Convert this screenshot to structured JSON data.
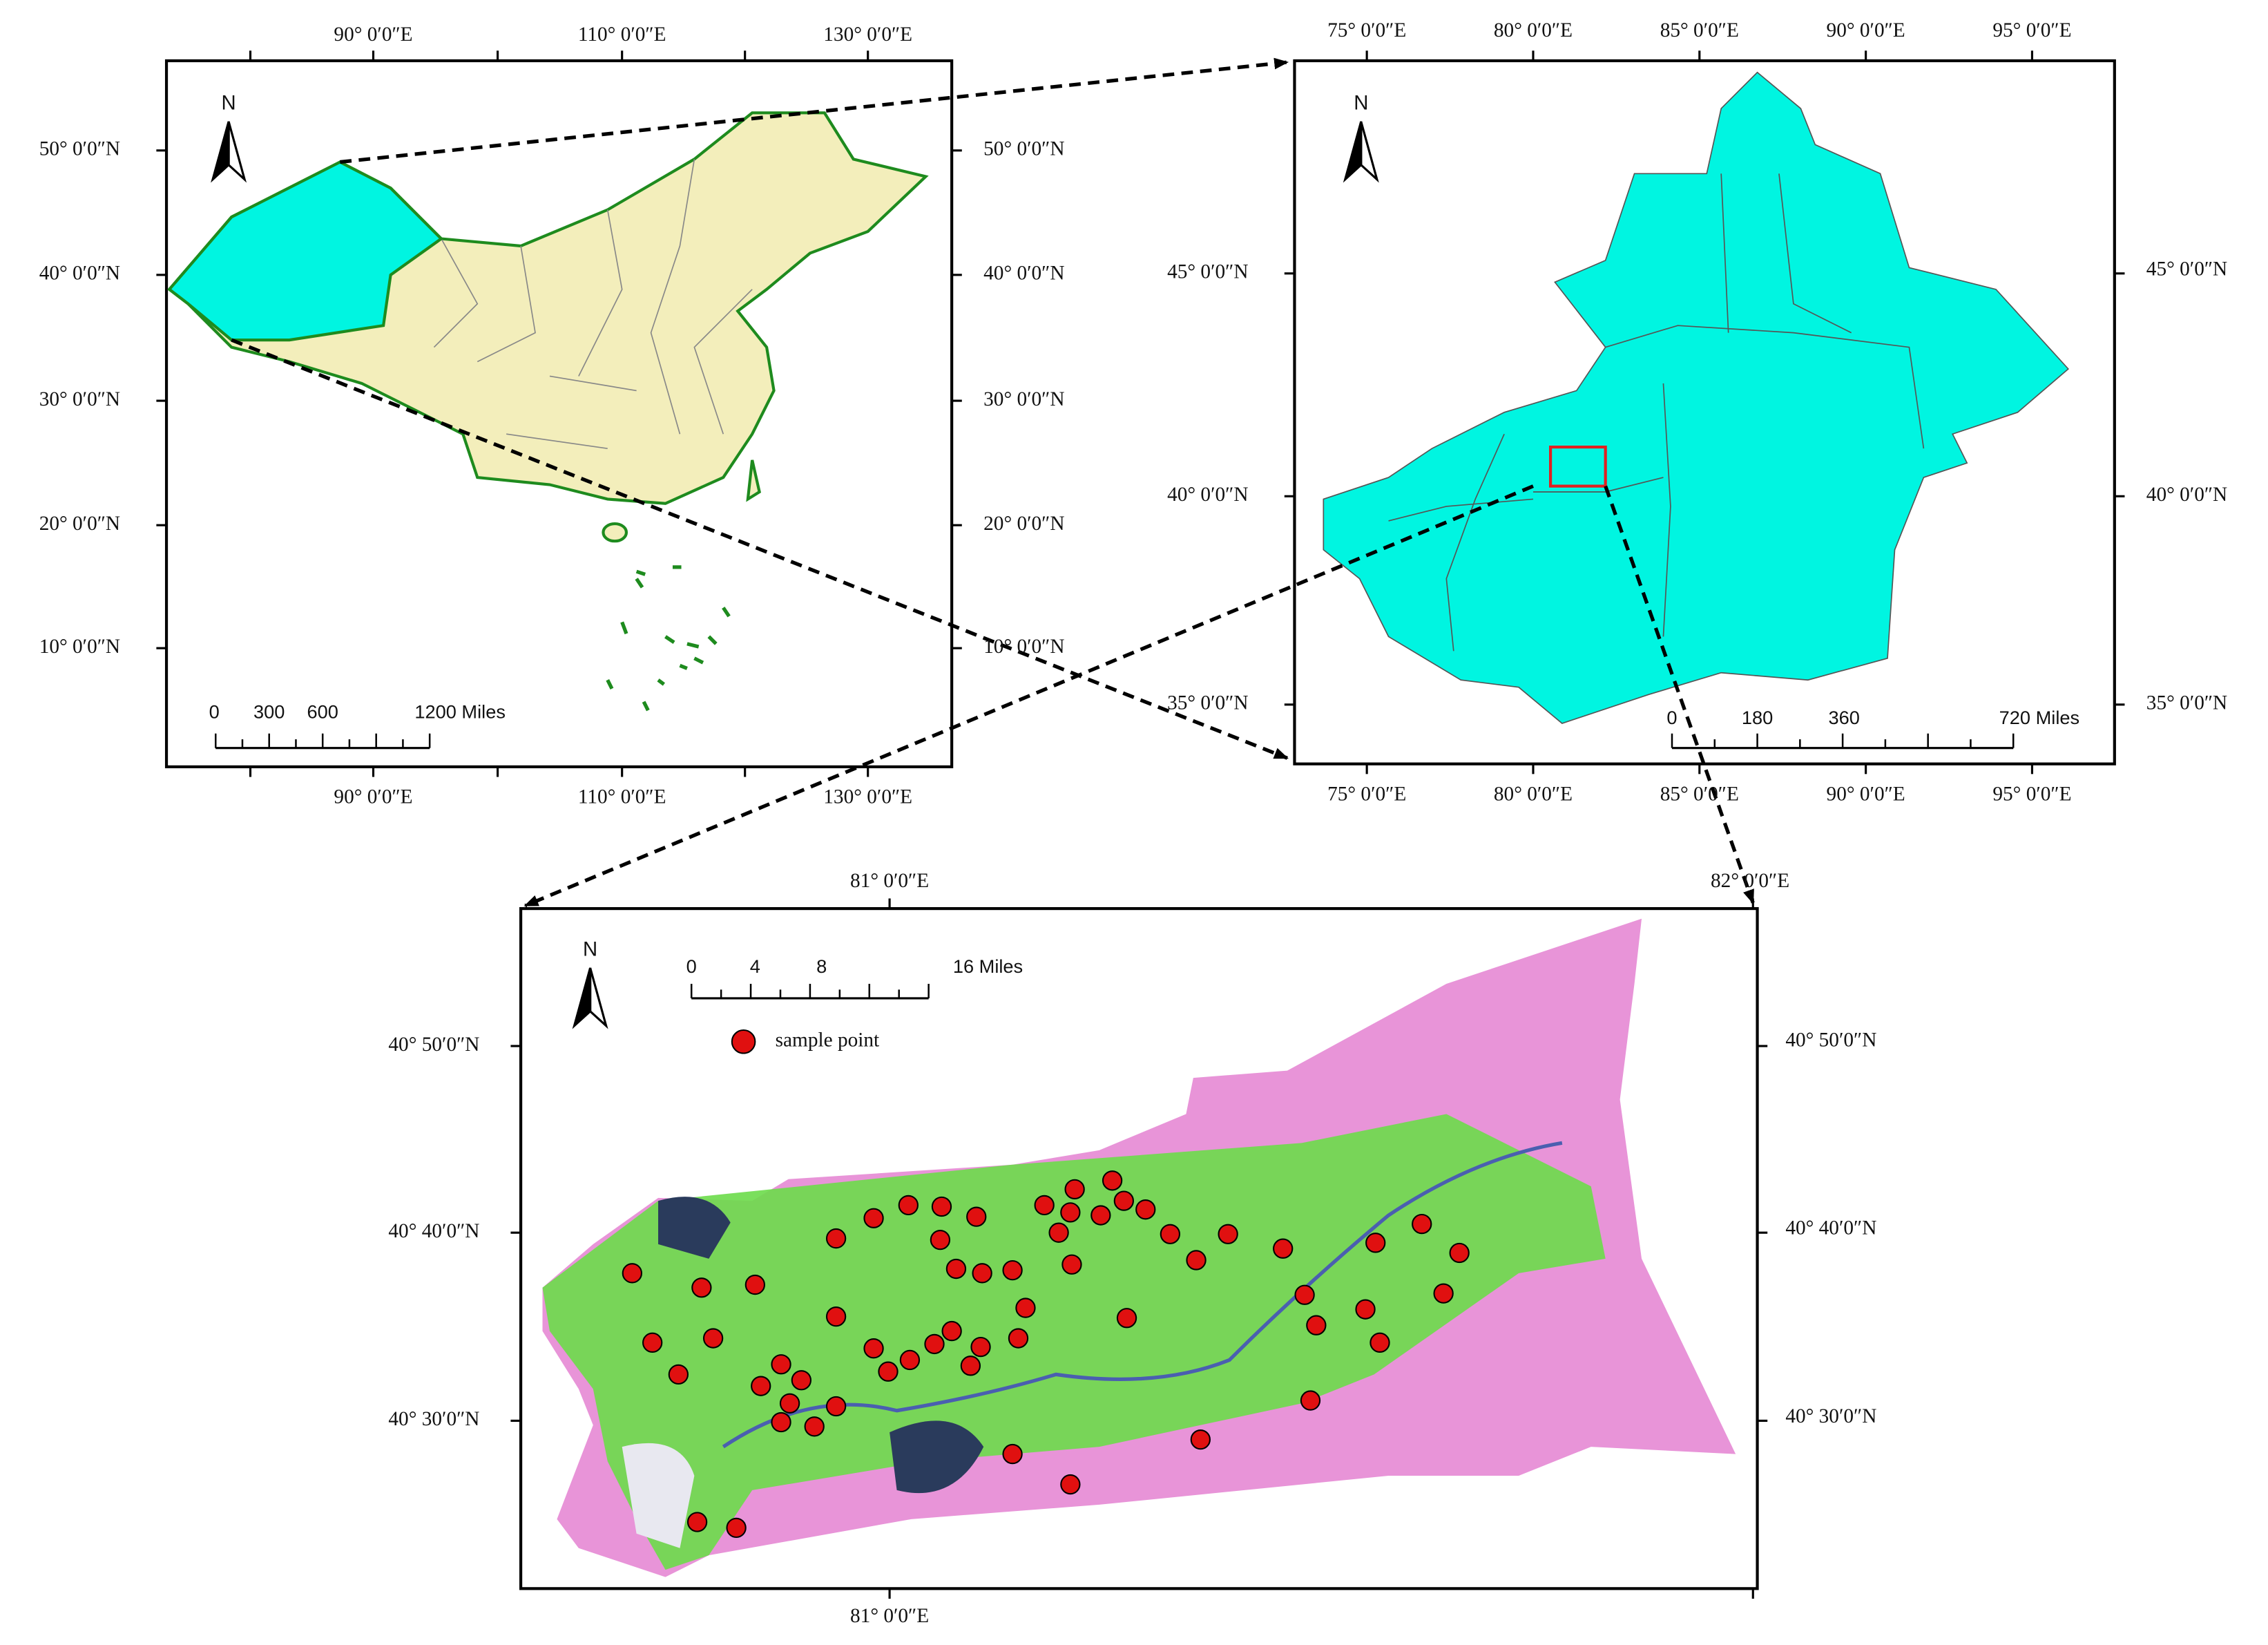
{
  "panels": [
    {
      "north": "N",
      "top_labels": [
        "90° 0′0″E",
        "110° 0′0″E",
        "130° 0′0″E"
      ],
      "bottom_labels": [
        "90° 0′0″E",
        "110° 0′0″E",
        "130° 0′0″E"
      ],
      "left_labels": [
        "50° 0′0″N",
        "40° 0′0″N",
        "30° 0′0″N",
        "20° 0′0″N",
        "10° 0′0″N"
      ],
      "right_labels": [
        "50° 0′0″N",
        "40° 0′0″N",
        "30° 0′0″N",
        "20° 0′0″N",
        "10° 0′0″N"
      ],
      "scale_labels": [
        "0",
        "300",
        "600",
        "1200 Miles"
      ]
    },
    {
      "north": "N",
      "top_labels": [
        "75° 0′0″E",
        "80° 0′0″E",
        "85° 0′0″E",
        "90° 0′0″E",
        "95° 0′0″E"
      ],
      "bottom_labels": [
        "75° 0′0″E",
        "80° 0′0″E",
        "85° 0′0″E",
        "90° 0′0″E",
        "95° 0′0″E"
      ],
      "left_labels": [
        "45° 0′0″N",
        "40° 0′0″N",
        "35° 0′0″N"
      ],
      "right_labels": [
        "45° 0′0″N",
        "40° 0′0″N",
        "35° 0′0″N"
      ],
      "scale_labels": [
        "0",
        "180",
        "360",
        "720 Miles"
      ]
    },
    {
      "north": "N",
      "top_labels": [
        "81° 0′0″E",
        "82° 0′0″E"
      ],
      "bottom_labels": [
        "81° 0′0″E"
      ],
      "left_labels": [
        "40° 50′0″N",
        "40° 40′0″N",
        "40° 30′0″N"
      ],
      "right_labels": [
        "40° 50′0″N",
        "40° 40′0″N",
        "40° 30′0″N"
      ],
      "scale_labels": [
        "0",
        "4",
        "8",
        "16 Miles"
      ]
    }
  ],
  "legend": {
    "label": "sample point"
  }
}
